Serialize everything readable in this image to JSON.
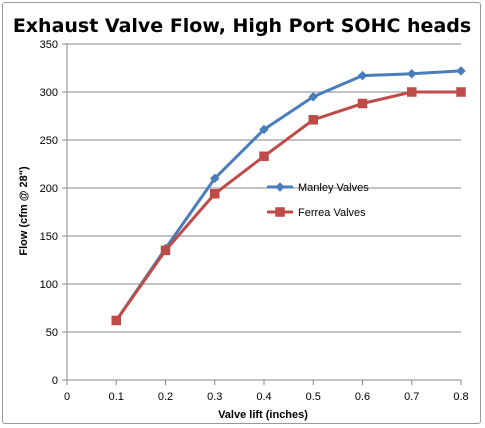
{
  "chart_data": {
    "type": "line",
    "title": "Exhaust Valve Flow, High Port SOHC heads",
    "xlabel": "Valve lift (inches)",
    "ylabel": "Flow (cfm @ 28\")",
    "xlim": [
      0,
      0.8
    ],
    "ylim": [
      0,
      350
    ],
    "xticks": [
      "0",
      "0.1",
      "0.2",
      "0.3",
      "0.4",
      "0.5",
      "0.6",
      "0.7",
      "0.8"
    ],
    "yticks": [
      "0",
      "50",
      "100",
      "150",
      "200",
      "250",
      "300",
      "350"
    ],
    "grid": "horizontal",
    "legend_position": "right-middle",
    "series": [
      {
        "name": "Manley Valves",
        "color": "#4a7ebb",
        "marker": "diamond",
        "x": [
          0.1,
          0.2,
          0.3,
          0.4,
          0.5,
          0.6,
          0.7,
          0.8
        ],
        "y": [
          62,
          137,
          210,
          261,
          295,
          317,
          319,
          322
        ]
      },
      {
        "name": "Ferrea Valves",
        "color": "#be4b48",
        "marker": "square",
        "x": [
          0.1,
          0.2,
          0.3,
          0.4,
          0.5,
          0.6,
          0.7,
          0.8
        ],
        "y": [
          62,
          135,
          194,
          233,
          271,
          288,
          300,
          300
        ]
      }
    ]
  }
}
